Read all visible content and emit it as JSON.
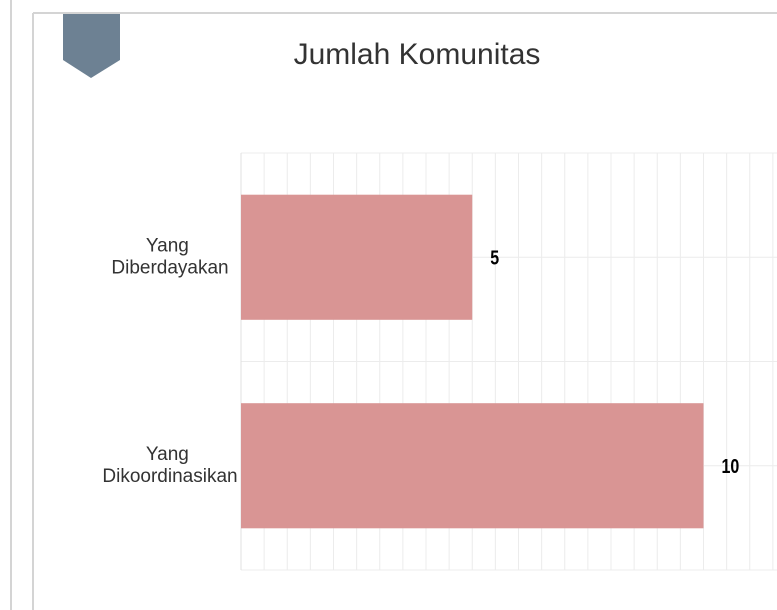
{
  "chart_data": {
    "type": "barh",
    "title": "Jumlah Komunitas",
    "categories": [
      "Yang Diberdayakan",
      "Yang Dikoordinasikan"
    ],
    "values": [
      5,
      10
    ],
    "color": "#d99594",
    "xlim": [
      0,
      12
    ],
    "grid": true
  }
}
